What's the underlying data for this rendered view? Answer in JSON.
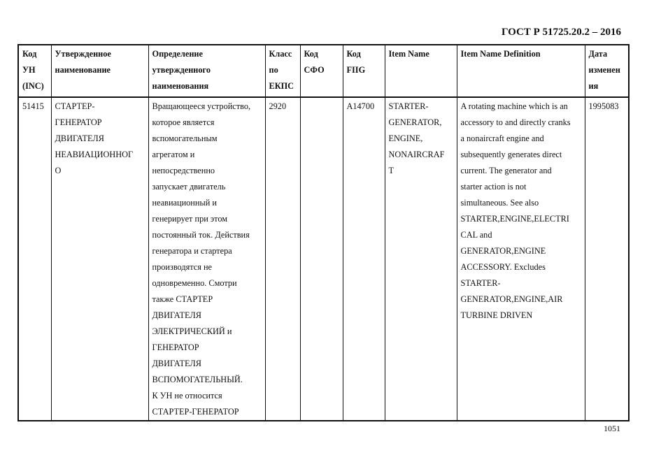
{
  "document": {
    "title": "ГОСТ Р 51725.20.2 – 2016",
    "page_number": "1051"
  },
  "table": {
    "headers": [
      [
        "Код",
        "УН",
        "(INC)"
      ],
      [
        "Утвержденное",
        "наименование"
      ],
      [
        "Определение",
        "утвержденного",
        "наименования"
      ],
      [
        "Класс",
        "по",
        "ЕКПС"
      ],
      [
        "Код",
        "СФО"
      ],
      [
        "Код",
        "FIIG"
      ],
      [
        "Item Name"
      ],
      [
        "Item Name Definition"
      ],
      [
        "Дата",
        "изменен",
        "ия"
      ]
    ],
    "rows": [
      [
        [
          "51415"
        ],
        [
          "СТАРТЕР-",
          "ГЕНЕРАТОР",
          "ДВИГАТЕЛЯ",
          "НЕАВИАЦИОННОГ",
          "О"
        ],
        [
          "Вращающееся устройство,",
          "которое является",
          "вспомогательным",
          "агрегатом и",
          "непосредственно",
          "запускает двигатель",
          "неавиационный и",
          "генерирует при этом",
          "постоянный ток. Действия",
          "генератора и стартера",
          "производятся не",
          "одновременно. Смотри",
          "также СТАРТЕР",
          "ДВИГАТЕЛЯ",
          "ЭЛЕКТРИЧЕСКИЙ и",
          "ГЕНЕРАТОР",
          "ДВИГАТЕЛЯ",
          "ВСПОМОГАТЕЛЬНЫЙ.",
          "К УН не относится",
          "СТАРТЕР-ГЕНЕРАТОР"
        ],
        [
          "2920"
        ],
        [],
        [
          "A14700"
        ],
        [
          "STARTER-",
          "GENERATOR,",
          "ENGINE,",
          "NONAIRCRAF",
          "T"
        ],
        [
          "A rotating machine which is an",
          "accessory to and directly cranks",
          "a nonaircraft engine and",
          "subsequently generates direct",
          "current. The generator and",
          "starter action is not",
          "simultaneous. See also",
          "STARTER,ENGINE,ELECTRI",
          "CAL and",
          "GENERATOR,ENGINE",
          "ACCESSORY. Excludes",
          "STARTER-",
          "GENERATOR,ENGINE,AIR",
          "TURBINE DRIVEN"
        ],
        [
          "1995083"
        ]
      ]
    ]
  }
}
